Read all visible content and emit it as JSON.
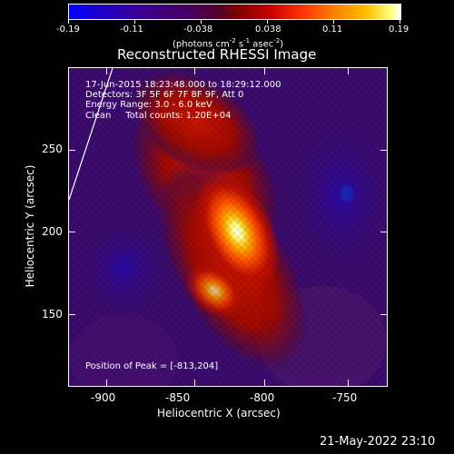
{
  "colorbar": {
    "tick_labels": [
      "-0.19",
      "-0.11",
      "-0.038",
      "0.038",
      "0.11",
      "0.19"
    ],
    "unit_parts": [
      "(photons cm",
      "-2",
      " s",
      "-1",
      " asec",
      "-2",
      ")"
    ]
  },
  "title": "Reconstructed RHESSI Image",
  "info": {
    "time_range": "17-Jun-2015 18:23:48.000 to 18:29:12.000",
    "detectors": "Detectors: 3F 5F 6F 7F 8F 9F, Att 0",
    "energy": "Energy Range: 3.0 - 6.0 keV",
    "clean": "Clean     Total counts: 1.20E+04",
    "peak": "Position of Peak = [-813,204]"
  },
  "axes": {
    "xlabel": "Heliocentric X (arcsec)",
    "ylabel": "Heliocentric Y (arcsec)",
    "x_ticks": [
      "-900",
      "-850",
      "-800",
      "-750"
    ],
    "y_ticks": [
      "250",
      "200",
      "150"
    ]
  },
  "timestamp": "21-May-2022 23:10",
  "colors": {
    "background": "#000000",
    "text": "#ffffff",
    "colormap": [
      "#0000ff",
      "#2a00a0",
      "#3a0b70",
      "#6a0f2a",
      "#c01000",
      "#ff5a00",
      "#ffb000",
      "#ffff60",
      "#ffffff"
    ]
  }
}
